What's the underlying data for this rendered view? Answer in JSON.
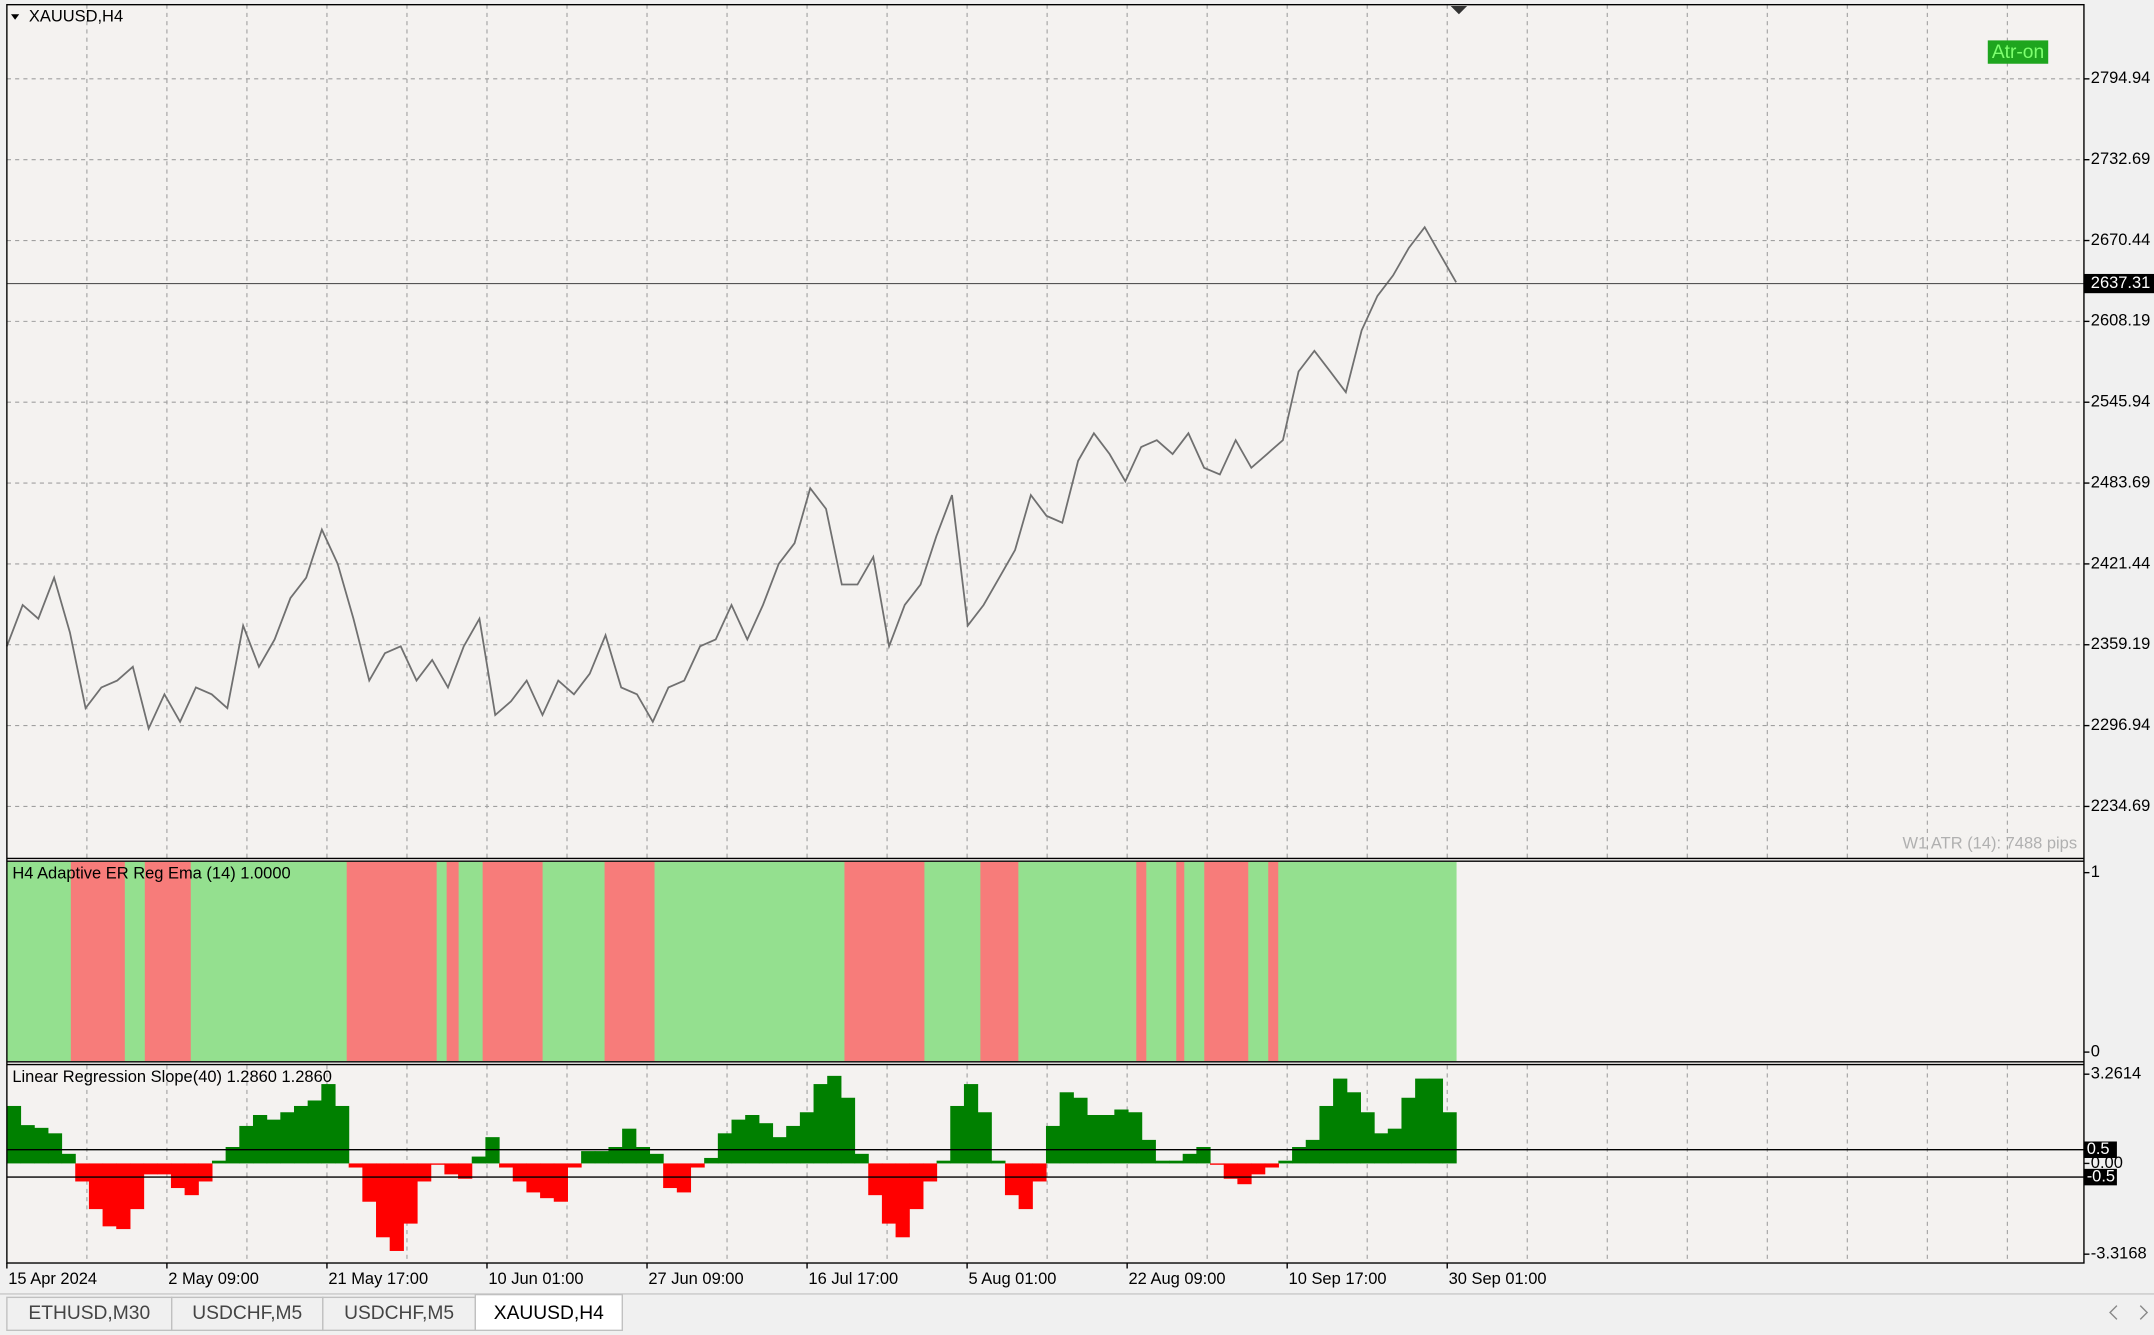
{
  "window": {
    "symbol_label": "XAUUSD,H4",
    "atr_button": "Atr-on",
    "atr_text": "W1 ATR (14): 7488 pips"
  },
  "price_chart": {
    "type": "line",
    "color": "#707070",
    "ylim": [
      2195.17,
      2852.06
    ],
    "yticks": [
      2794.94,
      2732.69,
      2670.44,
      2608.19,
      2545.94,
      2483.69,
      2421.44,
      2359.19,
      2296.94,
      2234.69
    ],
    "current_price": 2637.31,
    "values": [
      2358.0,
      2389.8,
      2379.2,
      2410.9,
      2368.6,
      2310.4,
      2326.3,
      2331.6,
      2342.2,
      2294.6,
      2321.0,
      2299.9,
      2326.3,
      2321.0,
      2310.4,
      2373.9,
      2342.2,
      2363.3,
      2395.1,
      2410.9,
      2447.9,
      2421.5,
      2379.2,
      2331.6,
      2352.7,
      2358.0,
      2331.6,
      2347.5,
      2326.3,
      2358.0,
      2379.2,
      2305.1,
      2315.7,
      2331.6,
      2305.1,
      2331.6,
      2321.0,
      2336.9,
      2366.5,
      2326.3,
      2321.0,
      2299.9,
      2326.3,
      2331.6,
      2358.0,
      2363.3,
      2389.8,
      2363.3,
      2389.8,
      2421.5,
      2437.4,
      2479.7,
      2463.8,
      2405.6,
      2405.6,
      2426.8,
      2358.0,
      2389.8,
      2405.6,
      2442.7,
      2474.4,
      2373.9,
      2389.8,
      2410.9,
      2432.1,
      2474.4,
      2458.5,
      2453.2,
      2500.8,
      2522.0,
      2506.1,
      2485.0,
      2511.4,
      2516.7,
      2506.1,
      2522.0,
      2495.5,
      2490.3,
      2516.7,
      2495.5,
      2506.1,
      2516.7,
      2569.6,
      2585.5,
      2569.6,
      2553.7,
      2601.3,
      2627.8,
      2643.6,
      2664.8,
      2680.7,
      2659.5,
      2638.3
    ]
  },
  "signal_pane": {
    "label": "H4 Adaptive ER Reg Ema (14) 1.0000",
    "up_color": "#94e08f",
    "down_color": "#f77c7a",
    "ylim": [
      -0.05,
      1.06
    ],
    "yticks": [
      1,
      0
    ],
    "runs": [
      {
        "value": 1,
        "bars": 32
      },
      {
        "value": 0,
        "bars": 27
      },
      {
        "value": 1,
        "bars": 10
      },
      {
        "value": 0,
        "bars": 23
      },
      {
        "value": 1,
        "bars": 78
      },
      {
        "value": 0,
        "bars": 45
      },
      {
        "value": 1,
        "bars": 5
      },
      {
        "value": 0,
        "bars": 6
      },
      {
        "value": 1,
        "bars": 12
      },
      {
        "value": 0,
        "bars": 30
      },
      {
        "value": 1,
        "bars": 31
      },
      {
        "value": 0,
        "bars": 25
      },
      {
        "value": 1,
        "bars": 95
      },
      {
        "value": 0,
        "bars": 40
      },
      {
        "value": 1,
        "bars": 28
      },
      {
        "value": 0,
        "bars": 19
      },
      {
        "value": 1,
        "bars": 59
      },
      {
        "value": 0,
        "bars": 5
      },
      {
        "value": 1,
        "bars": 15
      },
      {
        "value": 0,
        "bars": 4
      },
      {
        "value": 1,
        "bars": 10
      },
      {
        "value": 0,
        "bars": 22
      },
      {
        "value": 1,
        "bars": 10
      },
      {
        "value": 0,
        "bars": 5
      },
      {
        "value": 1,
        "bars": 89
      }
    ]
  },
  "slope_pane": {
    "type": "bar",
    "label": "Linear Regression Slope(40) 1.2860 1.2860",
    "up_color": "#008000",
    "down_color": "#ff0000",
    "ylim": [
      -3.64,
      3.59
    ],
    "yticks": [
      3.2614,
      {
        "value": 0,
        "label": "0.00"
      },
      -3.3168
    ],
    "levels": [
      0.5,
      -0.5
    ],
    "values": [
      2.1,
      1.4,
      1.3,
      1.1,
      0.35,
      -0.66,
      -1.67,
      -2.3,
      -2.4,
      -1.67,
      -0.4,
      -0.4,
      -0.9,
      -1.16,
      -0.66,
      0.1,
      0.6,
      1.37,
      1.77,
      1.6,
      1.87,
      2.1,
      2.3,
      2.9,
      2.1,
      -0.15,
      -1.4,
      -2.7,
      -3.2,
      -2.2,
      -0.66,
      -0.05,
      -0.4,
      -0.56,
      0.25,
      0.96,
      -0.15,
      -0.66,
      -1.06,
      -1.27,
      -1.4,
      -0.15,
      0.45,
      0.45,
      0.6,
      1.27,
      0.6,
      0.35,
      -0.9,
      -1.06,
      -0.15,
      0.2,
      1.1,
      1.6,
      1.77,
      1.47,
      0.96,
      1.37,
      1.87,
      2.9,
      3.2,
      2.4,
      0.35,
      -1.16,
      -2.2,
      -2.7,
      -1.67,
      -0.66,
      0.1,
      2.1,
      2.9,
      1.87,
      0.1,
      -1.16,
      -1.67,
      -0.66,
      1.37,
      2.6,
      2.4,
      1.77,
      1.77,
      1.97,
      1.87,
      0.86,
      0.1,
      0.1,
      0.35,
      0.6,
      -0.05,
      -0.56,
      -0.76,
      -0.4,
      -0.15,
      0.1,
      0.6,
      0.86,
      2.1,
      3.1,
      2.6,
      1.87,
      1.1,
      1.27,
      2.4,
      3.1,
      3.1,
      1.87
    ]
  },
  "time_axis": {
    "labels": [
      "15 Apr 2024",
      "2 May 09:00",
      "21 May 17:00",
      "10 Jun 01:00",
      "27 Jun 09:00",
      "16 Jul 17:00",
      "5 Aug 01:00",
      "22 Aug 09:00",
      "10 Sep 17:00",
      "30 Sep 01:00"
    ]
  },
  "tabs": [
    {
      "label": "ETHUSD,M30",
      "active": false
    },
    {
      "label": "USDCHF,M5",
      "active": false
    },
    {
      "label": "USDCHF,M5",
      "active": false
    },
    {
      "label": "XAUUSD,H4",
      "active": true
    }
  ]
}
